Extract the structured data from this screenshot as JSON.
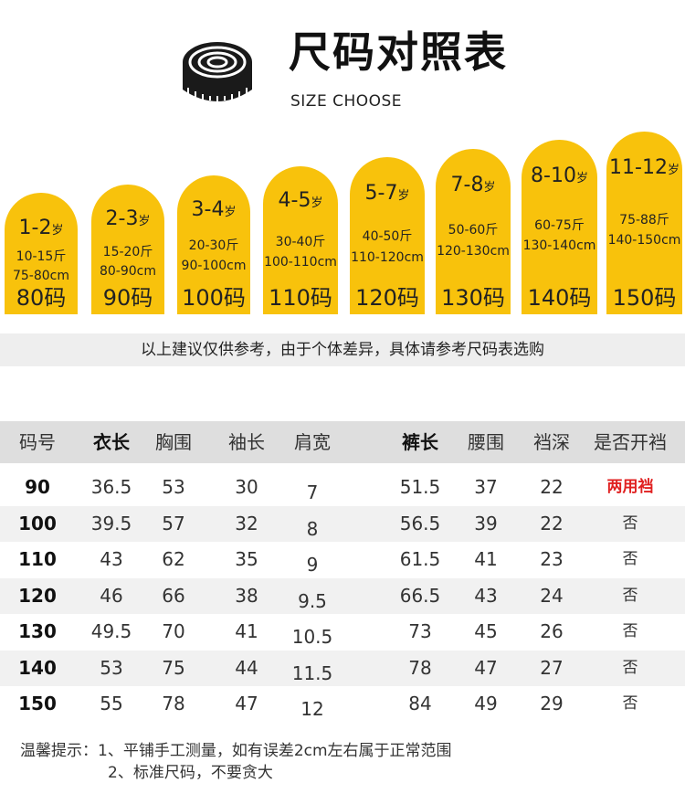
{
  "header": {
    "title": "尺码对照表",
    "subtitle": "SIZE CHOOSE",
    "icon": "tape-measure-icon"
  },
  "cards": [
    {
      "age": "1-2",
      "age_unit": "岁",
      "weight": "10-15斤",
      "height": "75-80cm",
      "code": "80码"
    },
    {
      "age": "2-3",
      "age_unit": "岁",
      "weight": "15-20斤",
      "height": "80-90cm",
      "code": "90码"
    },
    {
      "age": "3-4",
      "age_unit": "岁",
      "weight": "20-30斤",
      "height": "90-100cm",
      "code": "100码"
    },
    {
      "age": "4-5",
      "age_unit": "岁",
      "weight": "30-40斤",
      "height": "100-110cm",
      "code": "110码"
    },
    {
      "age": "5-7",
      "age_unit": "岁",
      "weight": "40-50斤",
      "height": "110-120cm",
      "code": "120码"
    },
    {
      "age": "7-8",
      "age_unit": "岁",
      "weight": "50-60斤",
      "height": "120-130cm",
      "code": "130码"
    },
    {
      "age": "8-10",
      "age_unit": "岁",
      "weight": "60-75斤",
      "height": "130-140cm",
      "code": "140码"
    },
    {
      "age": "11-12",
      "age_unit": "岁",
      "weight": "75-88斤",
      "height": "140-150cm",
      "code": "150码"
    }
  ],
  "note": "以上建议仅供参考，由于个体差异，具体请参考尺码表选购",
  "table": {
    "headers": [
      "码号",
      "衣长",
      "胸围",
      "袖长",
      "肩宽",
      "裤长",
      "腰围",
      "裆深",
      "是否开裆"
    ],
    "rows": [
      [
        "90",
        "36.5",
        "53",
        "30",
        "7",
        "51.5",
        "37",
        "22",
        "两用裆"
      ],
      [
        "100",
        "39.5",
        "57",
        "32",
        "8",
        "56.5",
        "39",
        "22",
        "否"
      ],
      [
        "110",
        "43",
        "62",
        "35",
        "9",
        "61.5",
        "41",
        "23",
        "否"
      ],
      [
        "120",
        "46",
        "66",
        "38",
        "9.5",
        "66.5",
        "43",
        "24",
        "否"
      ],
      [
        "130",
        "49.5",
        "70",
        "41",
        "10.5",
        "73",
        "45",
        "26",
        "否"
      ],
      [
        "140",
        "53",
        "75",
        "44",
        "11.5",
        "78",
        "47",
        "27",
        "否"
      ],
      [
        "150",
        "55",
        "78",
        "47",
        "12",
        "84",
        "49",
        "29",
        "否"
      ]
    ]
  },
  "tips": {
    "line1": "温馨提示：1、平铺手工测量，如有误差2cm左右属于正常范围",
    "line2": "2、标准尺码，不要贪大"
  },
  "colors": {
    "card": "#f8c20c",
    "note_bar": "#eeeeee",
    "table_header": "#dedede",
    "row_alt": "#f1f1f1",
    "highlight": "#e02020"
  }
}
